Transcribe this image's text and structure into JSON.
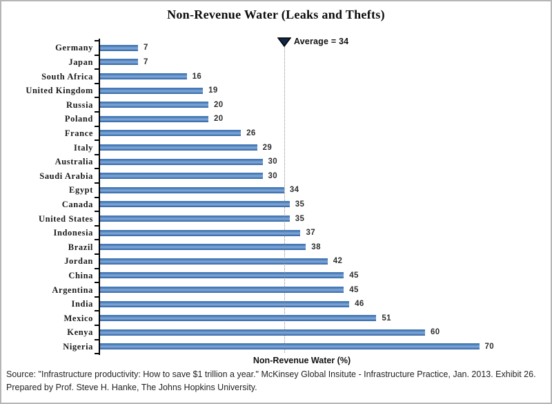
{
  "title": "Non-Revenue Water (Leaks and Thefts)",
  "chart_data": {
    "type": "bar",
    "orientation": "horizontal",
    "title": "Non-Revenue Water (Leaks and Thefts)",
    "xlabel": "Non-Revenue Water (%)",
    "ylabel": "",
    "xlim": [
      0,
      74
    ],
    "grid": false,
    "legend": "none",
    "data_labels": true,
    "bar_color": "#4f81bd",
    "average": 34,
    "average_label": "Average = 34",
    "categories": [
      "Germany",
      "Japan",
      "South Africa",
      "United Kingdom",
      "Russia",
      "Poland",
      "France",
      "Italy",
      "Australia",
      "Saudi Arabia",
      "Egypt",
      "Canada",
      "United States",
      "Indonesia",
      "Brazil",
      "Jordan",
      "China",
      "Argentina",
      "India",
      "Mexico",
      "Kenya",
      "Nigeria"
    ],
    "values": [
      7,
      7,
      16,
      19,
      20,
      20,
      26,
      29,
      30,
      30,
      34,
      35,
      35,
      37,
      38,
      42,
      45,
      45,
      46,
      51,
      60,
      70
    ]
  },
  "footer": {
    "source_line1": "Source: \"Infrastructure productivity: How to save $1 trillion a year.\" McKinsey Global Insitute - Infrastructure Practice, Jan. 2013. Exhibit 26.",
    "source_line2": "Prepared by Prof. Steve H. Hanke, The Johns Hopkins University."
  }
}
